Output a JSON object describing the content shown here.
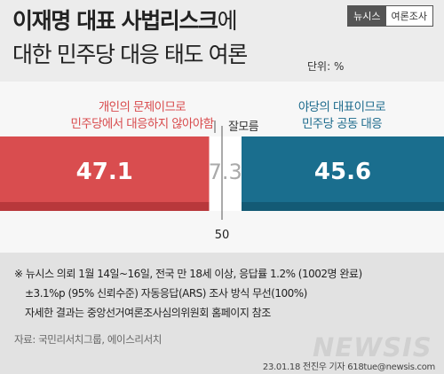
{
  "title": {
    "line1_bold": "이재명 대표 사법리스크",
    "line1_suffix": "에",
    "line2": "대한 민주당 대응 태도 여론"
  },
  "unit_label": "단위: %",
  "brand": {
    "part1": "뉴시스",
    "part2": "여론조사"
  },
  "colors": {
    "red": "#d94d4f",
    "red_dark": "#b8383b",
    "blue": "#1a6e8e",
    "blue_dark": "#135a75",
    "mid": "#ffffff"
  },
  "labels": {
    "left_line1": "개인의 문제이므로",
    "left_line2": "민주당에서 대응하지 않아야함",
    "right_line1": "야당의 대표이므로",
    "right_line2": "민주당 공동 대응",
    "middle": "잘모름",
    "center_tick": "50"
  },
  "chart_data": {
    "type": "bar",
    "orientation": "horizontal-stacked",
    "categories": [
      "개인의 문제이므로 민주당에서 대응하지 않아야함",
      "잘모름",
      "야당의 대표이므로 민주당 공동 대응"
    ],
    "values": [
      47.1,
      7.3,
      45.6
    ],
    "data_labels": [
      "47.1",
      "7.3",
      "45.6"
    ],
    "center_marker": 50,
    "xlim": [
      0,
      100
    ]
  },
  "notes": [
    "※ 뉴시스 의뢰 1월 14일~16일, 전국 만 18세 이상, 응답률 1.2% (1002명 완료)",
    "±3.1%p (95% 신뢰수준) 자동응답(ARS) 조사 방식 무선(100%)",
    "자세한 결과는 중앙선거여론조사심의위원회 홈페이지 참조"
  ],
  "source": "자료: 국민리서치그룹, 에이스리서치",
  "logo": "NEWSIS",
  "credit": "23.01.18 전진우 기자 618tue@newsis.com"
}
